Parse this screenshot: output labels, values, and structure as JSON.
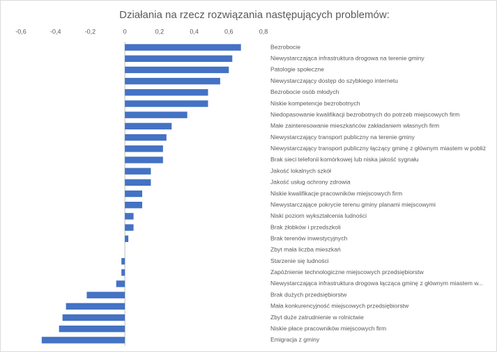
{
  "chart_data": {
    "type": "barh",
    "title": "Działania na rzecz rozwiązania następujących problemów:",
    "categories": [
      "Bezrobocie",
      "Niewystarczająca infrastruktura drogowa na terenie gminy",
      "Patologie społeczne",
      "Niewystarczający dostęp do szybkiego internetu",
      "Bezrobocie osób młodych",
      "Niskie kompetencje bezrobotnych",
      "Niedopasowanie kwalifikacji bezrobotnych do potrzeb miejscowych firm",
      "Małe zainteresowanie mieszkańców zakładaniem własnych firm",
      "Niewystarczający transport publiczny na terenie gminy",
      "Niewystarczający transport publiczny łączący gminę z głównym miastem w pobliż",
      "Brak sieci telefonii komórkowej lub niska jakość sygnału",
      "Jakość lokalnych szkół",
      "Jakość usług ochrony zdrowia",
      "Niskie kwalifikacje pracowników miejscowych firm",
      "Niewystarczające pokrycie terenu gminy planami miejscowymi",
      "Niski poziom wykształcenia ludności",
      "Brak żłobków i przedszkoli",
      "Brak terenów inwestycyjnych",
      "Zbyt mała liczba mieszkań",
      "Starzenie się ludności",
      "Zapóźnienie technologiczne miejscowych przedsiębiorstw",
      "Niewystarczająca infrastruktura drogowa łącząca gminę z głównym miastem w...",
      "Brak dużych przedsiębiorstw",
      "Mała konkurencyjność miejscowych przedsiębiorstw",
      "Zbyt duże zatrudnienie w rolnictwie",
      "Niskie płace pracowników miejscowych firm",
      "Emigracja z gminy"
    ],
    "values": [
      0.67,
      0.62,
      0.6,
      0.55,
      0.48,
      0.48,
      0.36,
      0.27,
      0.24,
      0.22,
      0.22,
      0.15,
      0.15,
      0.1,
      0.1,
      0.05,
      0.05,
      0.02,
      0,
      -0.02,
      -0.02,
      -0.05,
      -0.22,
      -0.34,
      -0.36,
      -0.38,
      -0.48
    ],
    "color": "#4472c4",
    "xlim": [
      -0.6,
      0.8
    ],
    "xticks": [
      {
        "value": -0.6,
        "label": "-0,6"
      },
      {
        "value": -0.4,
        "label": "-0,4"
      },
      {
        "value": -0.2,
        "label": "-0,2"
      },
      0,
      {
        "value": 0.2,
        "label": "0,2"
      },
      {
        "value": 0.4,
        "label": "0,4"
      },
      {
        "value": 0.6,
        "label": "0,6"
      },
      {
        "value": 0.8,
        "label": "0,8"
      }
    ],
    "grid": false
  }
}
